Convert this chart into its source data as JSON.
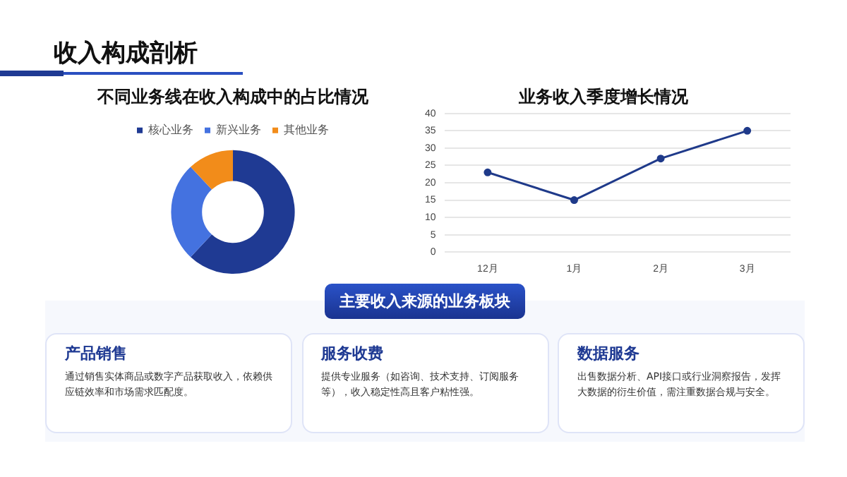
{
  "chart_data": [
    {
      "type": "other",
      "title": "收入构成剖析"
    },
    {
      "type": "donut",
      "title": "不同业务线在收入构成中的占比情况",
      "categories": [
        "核心业务",
        "新兴业务",
        "其他业务"
      ],
      "values": [
        62,
        26,
        12
      ],
      "colors": [
        "#1f3a93",
        "#4472e0",
        "#f28c1a"
      ],
      "legend": "top"
    },
    {
      "type": "line",
      "title": "业务收入季度增长情况",
      "categories": [
        "12月",
        "1月",
        "2月",
        "3月"
      ],
      "series": [
        {
          "color": "#1f3a8a",
          "values": [
            23,
            15,
            27,
            35
          ]
        }
      ],
      "ylim": [
        0,
        40
      ],
      "yticks": [
        0,
        5,
        10,
        15,
        20,
        25,
        30,
        35,
        40
      ],
      "grid": "y",
      "marker": "circle"
    },
    {
      "type": "other",
      "title": "主要收入来源的业务板块",
      "annotations": [
        "产品销售",
        "通过销售实体商品或数字产品获取收入，依赖供应链效率和市场需求匹配度。",
        "服务收费",
        "提供专业服务（如咨询、技术支持、订阅服务等），收入稳定性高且客户粘性强。",
        "数据服务",
        "出售数据分析、API接口或行业洞察报告，发挥大数据的衍生价值，需注重数据合规与安全。"
      ]
    }
  ]
}
